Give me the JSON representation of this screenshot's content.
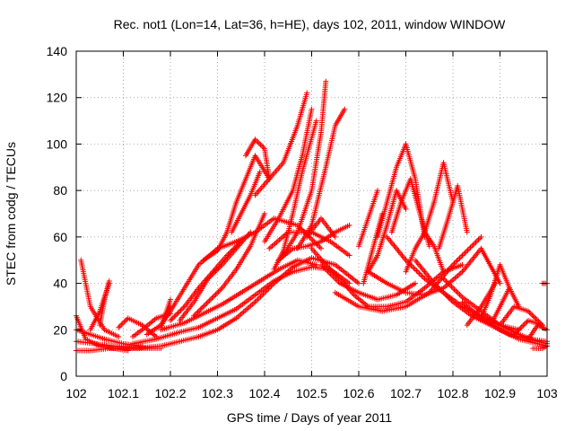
{
  "chart_data": {
    "type": "scatter",
    "title": "Rec. not1 (Lon=14, Lat=36, h=HE), days 102, 2011, window WINDOW",
    "xlabel": "GPS time / Days of year 2011",
    "ylabel": "STEC from codg / TECUs",
    "xlim": [
      102,
      103
    ],
    "ylim": [
      0,
      140
    ],
    "x_ticks": [
      "102",
      "102.1",
      "102.2",
      "102.3",
      "102.4",
      "102.5",
      "102.6",
      "102.7",
      "102.8",
      "102.9",
      "103"
    ],
    "y_ticks": [
      "0",
      "20",
      "40",
      "60",
      "80",
      "100",
      "120",
      "140"
    ],
    "grid": true,
    "marker": "+",
    "color": "#ff0000",
    "series": [
      {
        "x": [
          102.0,
          102.02,
          102.05,
          102.08,
          102.11
        ],
        "values": [
          26,
          16,
          13,
          12,
          11
        ]
      },
      {
        "x": [
          102.0,
          102.03,
          102.06,
          102.1,
          102.14
        ],
        "values": [
          20,
          18,
          16,
          14,
          13
        ]
      },
      {
        "x": [
          102.0,
          102.04,
          102.08,
          102.13,
          102.18
        ],
        "values": [
          15,
          14,
          13,
          12,
          12
        ]
      },
      {
        "x": [
          102.0,
          102.03,
          102.07
        ],
        "values": [
          11,
          11,
          12
        ]
      },
      {
        "x": [
          102.01,
          102.03,
          102.06,
          102.09
        ],
        "values": [
          50,
          30,
          20,
          17
        ]
      },
      {
        "x": [
          102.03,
          102.05,
          102.07
        ],
        "values": [
          20,
          28,
          40
        ]
      },
      {
        "x": [
          102.05,
          102.06,
          102.07
        ],
        "values": [
          22,
          33,
          41
        ]
      },
      {
        "x": [
          102.09,
          102.11,
          102.14,
          102.17
        ],
        "values": [
          21,
          25,
          22,
          17
        ]
      },
      {
        "x": [
          102.12,
          102.14,
          102.17,
          102.2
        ],
        "values": [
          17,
          20,
          25,
          27
        ]
      },
      {
        "x": [
          102.15,
          102.18,
          102.2
        ],
        "values": [
          18,
          22,
          30
        ]
      },
      {
        "x": [
          102.18,
          102.2
        ],
        "values": [
          21,
          33
        ]
      },
      {
        "x": [
          102.07,
          102.12,
          102.18,
          102.22,
          102.26,
          102.3,
          102.34,
          102.38,
          102.42,
          102.46,
          102.5,
          102.55,
          102.6
        ],
        "values": [
          12,
          12,
          13,
          15,
          17,
          20,
          25,
          32,
          40,
          47,
          51,
          48,
          40
        ]
      },
      {
        "x": [
          102.12,
          102.17,
          102.22,
          102.26,
          102.3,
          102.34,
          102.38,
          102.42,
          102.46,
          102.5,
          102.54,
          102.58
        ],
        "values": [
          14,
          16,
          19,
          21,
          25,
          29,
          35,
          41,
          45,
          47,
          46,
          40
        ]
      },
      {
        "x": [
          102.18,
          102.23,
          102.27,
          102.31,
          102.35,
          102.39,
          102.43,
          102.47,
          102.51
        ],
        "values": [
          20,
          23,
          27,
          31,
          36,
          41,
          46,
          50,
          48
        ]
      },
      {
        "x": [
          102.18,
          102.2,
          102.23,
          102.26,
          102.3,
          102.34,
          102.38,
          102.42,
          102.47,
          102.52
        ],
        "values": [
          22,
          28,
          38,
          48,
          55,
          58,
          62,
          68,
          65,
          55
        ]
      },
      {
        "x": [
          102.2,
          102.23,
          102.26,
          102.29,
          102.32,
          102.35
        ],
        "values": [
          24,
          30,
          38,
          45,
          52,
          58
        ]
      },
      {
        "x": [
          102.22,
          102.25,
          102.28,
          102.31,
          102.34,
          102.37
        ],
        "values": [
          24,
          32,
          42,
          48,
          55,
          62
        ]
      },
      {
        "x": [
          102.25,
          102.28,
          102.31,
          102.34,
          102.37,
          102.4
        ],
        "values": [
          26,
          32,
          38,
          46,
          56,
          70
        ]
      },
      {
        "x": [
          102.27,
          102.3,
          102.32,
          102.34,
          102.36,
          102.38,
          102.41
        ],
        "values": [
          50,
          54,
          62,
          75,
          85,
          95,
          85
        ]
      },
      {
        "x": [
          102.33,
          102.35,
          102.37,
          102.39
        ],
        "values": [
          62,
          70,
          78,
          88
        ]
      },
      {
        "x": [
          102.36,
          102.38,
          102.4,
          102.41
        ],
        "values": [
          95,
          102,
          98,
          85
        ]
      },
      {
        "x": [
          102.38,
          102.41,
          102.44,
          102.47,
          102.49
        ],
        "values": [
          78,
          85,
          92,
          108,
          122
        ]
      },
      {
        "x": [
          102.4,
          102.43,
          102.46,
          102.48,
          102.5
        ],
        "values": [
          58,
          68,
          80,
          95,
          115
        ]
      },
      {
        "x": [
          102.42,
          102.44,
          102.46,
          102.48,
          102.51
        ],
        "values": [
          46,
          54,
          70,
          88,
          110
        ]
      },
      {
        "x": [
          102.44,
          102.47,
          102.5,
          102.52,
          102.53
        ],
        "values": [
          52,
          62,
          80,
          105,
          127
        ]
      },
      {
        "x": [
          102.47,
          102.5,
          102.53,
          102.55,
          102.57
        ],
        "values": [
          55,
          65,
          90,
          108,
          115
        ]
      },
      {
        "x": [
          102.49,
          102.52,
          102.55
        ],
        "values": [
          60,
          68,
          60
        ]
      },
      {
        "x": [
          102.41,
          102.45,
          102.5,
          102.54,
          102.58
        ],
        "values": [
          55,
          62,
          62,
          58,
          52
        ]
      },
      {
        "x": [
          102.43,
          102.46,
          102.49,
          102.52,
          102.55,
          102.58
        ],
        "values": [
          50,
          55,
          56,
          58,
          62,
          65
        ]
      },
      {
        "x": [
          102.5,
          102.53,
          102.56,
          102.59,
          102.62,
          102.66,
          102.7,
          102.74,
          102.78,
          102.82
        ],
        "values": [
          55,
          48,
          42,
          35,
          30,
          30,
          32,
          38,
          45,
          48
        ]
      },
      {
        "x": [
          102.52,
          102.56,
          102.6,
          102.64,
          102.68,
          102.72
        ],
        "values": [
          48,
          40,
          36,
          33,
          35,
          40
        ]
      },
      {
        "x": [
          102.55,
          102.6,
          102.65,
          102.7,
          102.75,
          102.8,
          102.86
        ],
        "values": [
          36,
          30,
          28,
          30,
          36,
          48,
          60
        ]
      },
      {
        "x": [
          102.6,
          102.62,
          102.64
        ],
        "values": [
          56,
          68,
          80
        ]
      },
      {
        "x": [
          102.61,
          102.63,
          102.65
        ],
        "values": [
          40,
          55,
          70
        ]
      },
      {
        "x": [
          102.62,
          102.64,
          102.66,
          102.68,
          102.7
        ],
        "values": [
          45,
          52,
          65,
          80,
          72
        ]
      },
      {
        "x": [
          102.64,
          102.66,
          102.68,
          102.7,
          102.72,
          102.74
        ],
        "values": [
          60,
          75,
          90,
          100,
          85,
          60
        ]
      },
      {
        "x": [
          102.67,
          102.69,
          102.71,
          102.73,
          102.75
        ],
        "values": [
          62,
          75,
          85,
          70,
          56
        ]
      },
      {
        "x": [
          102.7,
          102.72,
          102.74,
          102.76,
          102.78
        ],
        "values": [
          45,
          55,
          62,
          56,
          45
        ]
      },
      {
        "x": [
          102.74,
          102.76,
          102.78,
          102.8
        ],
        "values": [
          62,
          75,
          92,
          75
        ]
      },
      {
        "x": [
          102.77,
          102.79,
          102.81,
          102.83
        ],
        "values": [
          55,
          68,
          82,
          62
        ]
      },
      {
        "x": [
          102.62,
          102.66,
          102.7,
          102.74,
          102.78,
          102.82,
          102.86,
          102.9
        ],
        "values": [
          45,
          40,
          36,
          35,
          38,
          45,
          55,
          40
        ]
      },
      {
        "x": [
          102.66,
          102.7,
          102.74,
          102.78,
          102.82,
          102.86,
          102.9,
          102.94
        ],
        "values": [
          60,
          50,
          42,
          36,
          30,
          26,
          22,
          20
        ]
      },
      {
        "x": [
          102.72,
          102.76,
          102.8,
          102.84,
          102.88,
          102.92,
          102.96,
          103.0
        ],
        "values": [
          50,
          40,
          32,
          26,
          22,
          18,
          16,
          15
        ]
      },
      {
        "x": [
          102.78,
          102.82,
          102.86,
          102.9,
          102.94,
          102.98,
          103.0
        ],
        "values": [
          42,
          34,
          28,
          22,
          18,
          15,
          14
        ]
      },
      {
        "x": [
          102.82,
          102.86,
          102.9,
          102.94,
          102.98,
          103.0
        ],
        "values": [
          32,
          25,
          20,
          16,
          14,
          13
        ]
      },
      {
        "x": [
          102.83,
          102.86,
          102.89
        ],
        "values": [
          22,
          30,
          40
        ]
      },
      {
        "x": [
          102.86,
          102.88,
          102.9,
          102.92
        ],
        "values": [
          25,
          35,
          48,
          38
        ]
      },
      {
        "x": [
          102.88,
          102.9,
          102.92,
          102.94
        ],
        "values": [
          22,
          30,
          38,
          30
        ]
      },
      {
        "x": [
          102.9,
          102.93,
          102.96,
          102.99
        ],
        "values": [
          22,
          30,
          28,
          22
        ]
      },
      {
        "x": [
          102.93,
          102.96,
          102.99
        ],
        "values": [
          18,
          24,
          22
        ]
      },
      {
        "x": [
          102.99,
          103.0
        ],
        "values": [
          40,
          40
        ]
      },
      {
        "x": [
          102.96,
          102.98,
          103.0
        ],
        "values": [
          16,
          22,
          20
        ]
      },
      {
        "x": [
          102.97,
          102.99,
          103.0
        ],
        "values": [
          12,
          12,
          13
        ]
      }
    ]
  }
}
